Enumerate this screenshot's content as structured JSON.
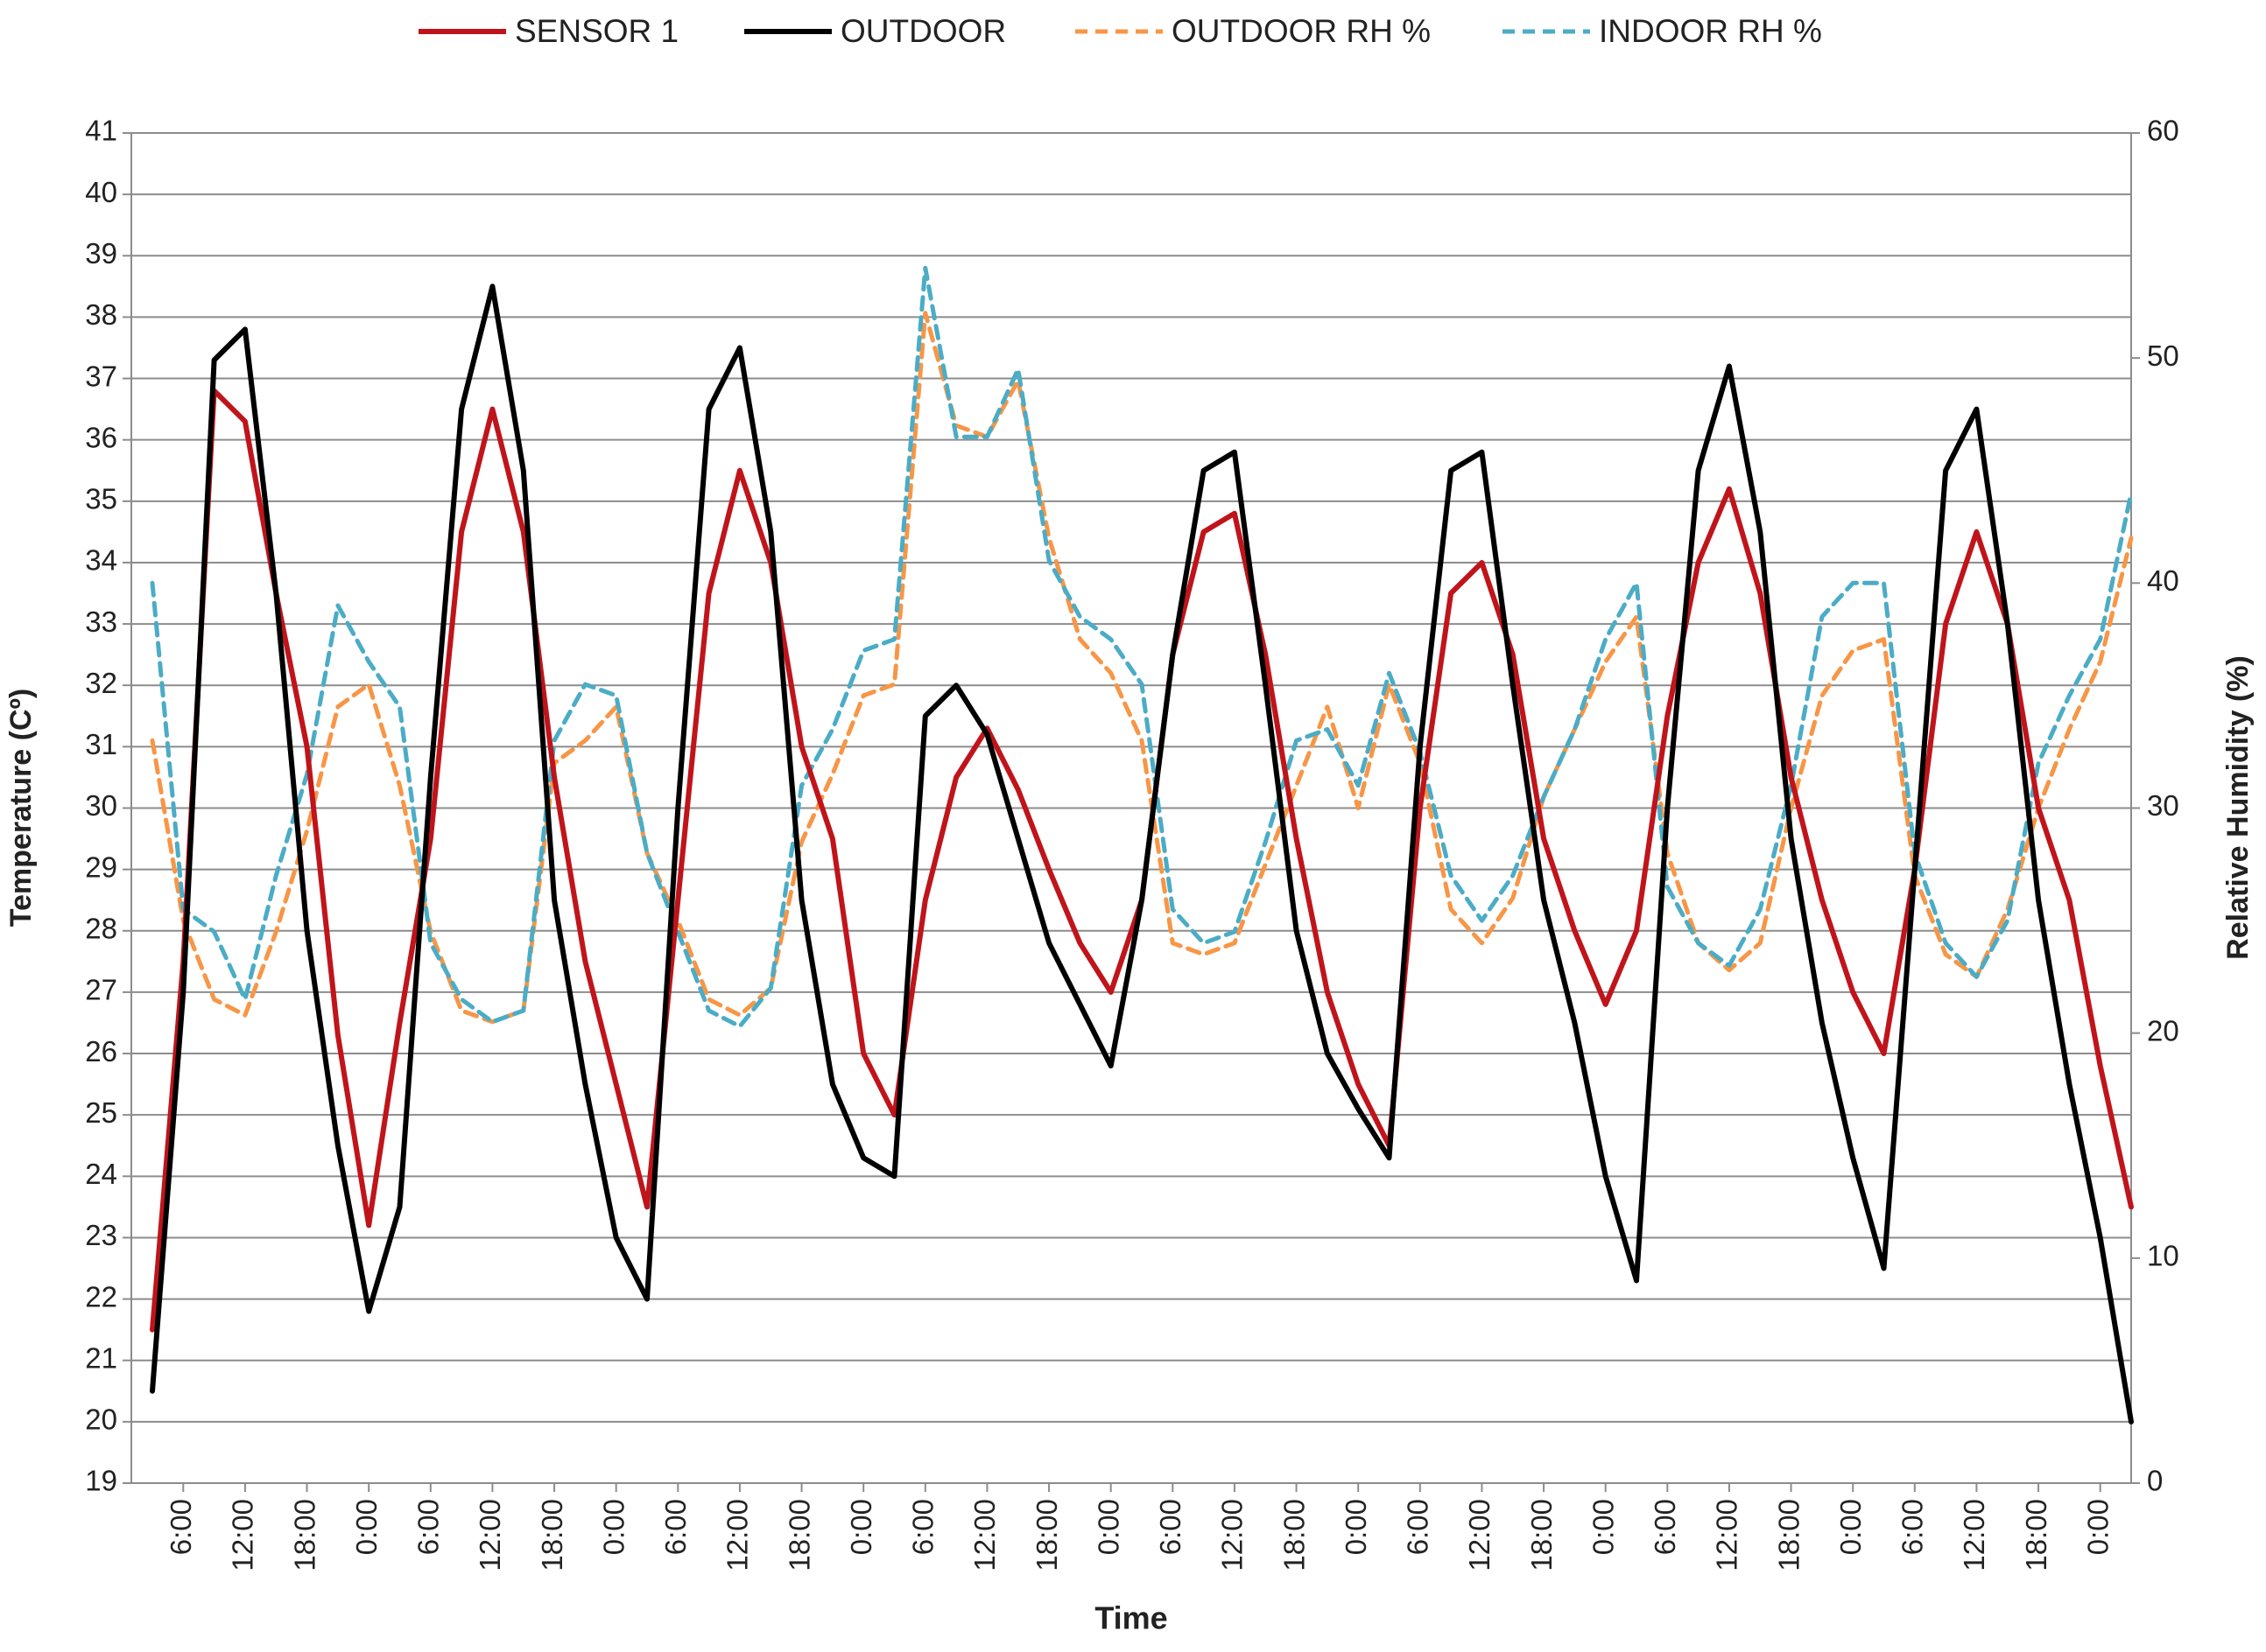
{
  "chart_data": {
    "type": "line",
    "xlabel": "Time",
    "ylabel": "Temperature (Cº)",
    "y2label": "Relative Humidity (%)",
    "legend": "top",
    "grid": true,
    "ylim": [
      19,
      41
    ],
    "yticks": [
      19,
      20,
      21,
      22,
      23,
      24,
      25,
      26,
      27,
      28,
      29,
      30,
      31,
      32,
      33,
      34,
      35,
      36,
      37,
      38,
      39,
      40,
      41
    ],
    "y2lim": [
      0,
      60
    ],
    "y2ticks": [
      0,
      10,
      20,
      30,
      40,
      50,
      60
    ],
    "categories": [
      null,
      "6:00",
      null,
      "12:00",
      null,
      "18:00",
      null,
      "0:00",
      null,
      "6:00",
      null,
      "12:00",
      null,
      "18:00",
      null,
      "0:00",
      null,
      "6:00",
      null,
      "12:00",
      null,
      "18:00",
      null,
      "0:00",
      null,
      "6:00",
      null,
      "12:00",
      null,
      "18:00",
      null,
      "0:00",
      null,
      "6:00",
      null,
      "12:00",
      null,
      "18:00",
      null,
      "0:00",
      null,
      "6:00",
      null,
      "12:00",
      null,
      "18:00",
      null,
      "0:00",
      null,
      "6:00",
      null,
      "12:00",
      null,
      "18:00",
      null,
      "0:00",
      null,
      "6:00",
      null,
      "12:00",
      null,
      "18:00",
      null,
      "0:00",
      null
    ],
    "series": [
      {
        "name": "SENSOR 1",
        "color": "#c0141b",
        "style": "solid",
        "values": [
          21.5,
          27.5,
          36.8,
          36.3,
          33.5,
          31,
          26.3,
          23.2,
          26.5,
          29.5,
          34.5,
          36.5,
          34.5,
          30.5,
          27.5,
          25.5,
          23.5,
          28.5,
          33.5,
          35.5,
          34,
          31,
          29.5,
          26,
          25,
          28.5,
          30.5,
          31.3,
          30.3,
          29,
          27.8,
          27,
          28.5,
          32.5,
          34.5,
          34.8,
          32.5,
          29.5,
          27,
          25.5,
          24.5,
          30,
          33.5,
          34,
          32.5,
          29.5,
          28,
          26.8,
          28,
          31.5,
          34,
          35.2,
          33.5,
          30.5,
          28.5,
          27,
          26,
          29,
          33,
          34.5,
          33,
          30,
          28.5,
          25.8,
          23.5
        ]
      },
      {
        "name": "OUTDOOR",
        "color": "#000000",
        "style": "solid",
        "values": [
          20.5,
          27,
          37.3,
          37.8,
          33.5,
          28,
          24.5,
          21.8,
          23.5,
          30.5,
          36.5,
          38.5,
          35.5,
          28.5,
          25.5,
          23,
          22,
          30,
          36.5,
          37.5,
          34.5,
          28.5,
          25.5,
          24.3,
          24,
          31.5,
          32,
          31.2,
          29.5,
          27.8,
          26.8,
          25.8,
          28.5,
          32.5,
          35.5,
          35.8,
          32,
          28,
          26,
          25.1,
          24.3,
          31,
          35.5,
          35.8,
          32,
          28.5,
          26.5,
          24,
          22.3,
          30,
          35.5,
          37.2,
          34.5,
          29.5,
          26.5,
          24.3,
          22.5,
          29,
          35.5,
          36.5,
          33,
          28.5,
          25.5,
          23,
          20
        ]
      },
      {
        "name": "OUTDOOR RH %",
        "color": "#f79646",
        "style": "dashed",
        "axis": "y2",
        "values": [
          33,
          25,
          21.5,
          20.8,
          24.5,
          29,
          34.5,
          35.5,
          31,
          24.5,
          21,
          20.5,
          21,
          32,
          33,
          34.5,
          28,
          25,
          21.5,
          20.8,
          22,
          28.5,
          31.5,
          35,
          35.5,
          52,
          47,
          46.5,
          49,
          42,
          37.5,
          36,
          33,
          24,
          23.5,
          24,
          27.5,
          31,
          34.5,
          30,
          35.5,
          32,
          25.5,
          24,
          26,
          30.5,
          33.5,
          36.5,
          38.5,
          28,
          24,
          22.8,
          24,
          30,
          35,
          37,
          37.5,
          27,
          23.5,
          22.5,
          25.5,
          30,
          33.5,
          36.5,
          42
        ]
      },
      {
        "name": "INDOOR RH %",
        "color": "#4bacc6",
        "style": "dashed",
        "axis": "y2",
        "values": [
          40,
          25.5,
          24.5,
          21.5,
          27,
          31.5,
          39,
          36.5,
          34.5,
          24,
          21.5,
          20.5,
          21,
          33,
          35.5,
          35,
          28,
          24.5,
          21,
          20.3,
          22,
          31,
          33.5,
          37,
          37.5,
          54,
          46.5,
          46.5,
          49.5,
          41,
          38.5,
          37.5,
          35.5,
          25.5,
          24,
          24.5,
          28.5,
          33,
          33.5,
          31,
          36,
          32.5,
          27,
          25,
          27,
          30.5,
          33.5,
          37.5,
          40,
          26.5,
          24,
          23,
          25.5,
          31,
          38.5,
          40,
          40,
          28,
          24,
          22.5,
          25,
          32,
          35,
          37.5,
          44
        ]
      }
    ]
  }
}
